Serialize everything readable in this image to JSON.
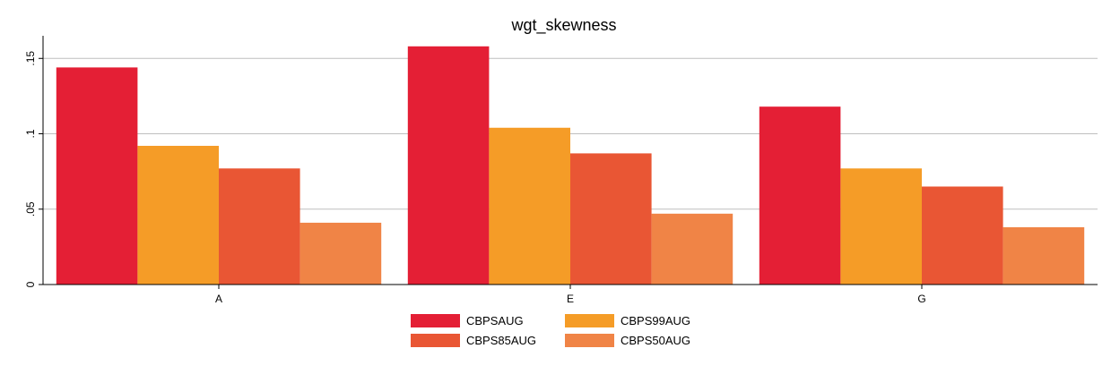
{
  "chart_data": {
    "type": "bar",
    "title": "wgt_skewness",
    "xlabel": "",
    "ylabel": "",
    "categories": [
      "A",
      "E",
      "G"
    ],
    "ylim": [
      0,
      0.165
    ],
    "yticks": [
      {
        "value": 0,
        "label": "0"
      },
      {
        "value": 0.05,
        "label": ".05"
      },
      {
        "value": 0.1,
        "label": ".1"
      },
      {
        "value": 0.15,
        "label": ".15"
      }
    ],
    "grid": true,
    "legend_position": "bottom",
    "series": [
      {
        "name": "CBPSAUG",
        "color": "#e41f35",
        "values": [
          0.144,
          0.158,
          0.118
        ]
      },
      {
        "name": "CBPS99AUG",
        "color": "#f59c27",
        "values": [
          0.092,
          0.104,
          0.077
        ]
      },
      {
        "name": "CBPS85AUG",
        "color": "#e95634",
        "values": [
          0.077,
          0.087,
          0.065
        ]
      },
      {
        "name": "CBPS50AUG",
        "color": "#f08446",
        "values": [
          0.041,
          0.047,
          0.038
        ]
      }
    ]
  }
}
